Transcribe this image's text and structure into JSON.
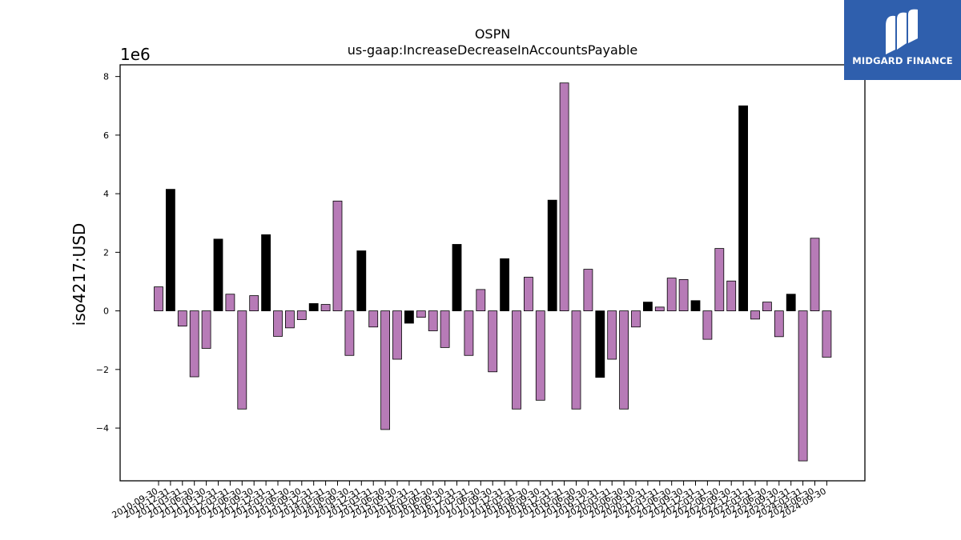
{
  "brand": {
    "name": "MIDGARD FINANCE",
    "bg_color": "#2f5fad",
    "icon": "midgard-logo-icon"
  },
  "chart_data": {
    "type": "bar",
    "title": "OSPN",
    "subtitle": "us-gaap:IncreaseDecreaseInAccountsPayable",
    "ylabel": "iso4217:USD",
    "xlabel": "",
    "y_scale_label": "1e6",
    "y_multiplier": 1000000,
    "ylim": [
      -5.8,
      8.4
    ],
    "yticks": [
      -4,
      -2,
      0,
      2,
      4,
      6,
      8
    ],
    "ytick_labels": [
      "−4",
      "−2",
      "0",
      "2",
      "4",
      "6",
      "8"
    ],
    "grid": false,
    "legend": "none",
    "colors": {
      "q4": "#000000",
      "other": "#b77bb7",
      "edge": "#000000"
    },
    "categories": [
      "2010-09-30",
      "2010-12-31",
      "2011-03-31",
      "2011-06-30",
      "2011-09-30",
      "2011-12-31",
      "2012-03-31",
      "2012-06-30",
      "2012-09-30",
      "2012-12-31",
      "2013-03-31",
      "2013-06-30",
      "2013-09-30",
      "2013-12-31",
      "2014-03-31",
      "2014-06-30",
      "2014-09-30",
      "2014-12-31",
      "2015-03-31",
      "2015-06-30",
      "2015-09-30",
      "2015-12-31",
      "2016-03-31",
      "2016-06-30",
      "2016-09-30",
      "2016-12-31",
      "2017-03-31",
      "2017-06-30",
      "2017-09-30",
      "2017-12-31",
      "2018-03-31",
      "2018-06-30",
      "2018-09-30",
      "2018-12-31",
      "2019-03-31",
      "2019-06-30",
      "2019-09-30",
      "2019-12-31",
      "2020-03-31",
      "2020-06-30",
      "2020-09-30",
      "2020-12-31",
      "2021-03-31",
      "2021-06-30",
      "2021-09-30",
      "2021-12-31",
      "2022-03-31",
      "2022-06-30",
      "2022-09-30",
      "2022-12-31",
      "2023-03-31",
      "2023-06-30",
      "2023-09-30",
      "2023-12-31",
      "2024-03-31",
      "2024-06-30",
      "2024-09-30"
    ],
    "values": [
      0.82,
      4.15,
      -0.52,
      -2.25,
      -1.28,
      2.45,
      0.57,
      -3.35,
      0.52,
      2.6,
      -0.87,
      -0.58,
      -0.3,
      0.25,
      0.22,
      3.75,
      -1.52,
      2.05,
      -0.55,
      -4.05,
      -1.65,
      -0.42,
      -0.22,
      -0.68,
      -1.25,
      2.27,
      -1.52,
      0.73,
      -2.08,
      1.78,
      -3.35,
      1.15,
      -3.05,
      3.78,
      7.78,
      -3.35,
      1.42,
      -2.27,
      -1.65,
      -3.35,
      -0.55,
      0.3,
      0.13,
      1.12,
      1.07,
      0.35,
      -0.97,
      2.13,
      1.02,
      7.0,
      -0.28,
      0.3,
      -0.88,
      0.57,
      -5.12,
      2.48,
      -1.58
    ],
    "highlight": [
      false,
      true,
      false,
      false,
      false,
      true,
      false,
      false,
      false,
      true,
      false,
      false,
      false,
      true,
      false,
      false,
      false,
      true,
      false,
      false,
      false,
      true,
      false,
      false,
      false,
      true,
      false,
      false,
      false,
      true,
      false,
      false,
      false,
      true,
      false,
      false,
      false,
      true,
      false,
      false,
      false,
      true,
      false,
      false,
      false,
      true,
      false,
      false,
      false,
      true,
      false,
      false,
      false,
      true,
      false,
      false,
      false
    ]
  }
}
